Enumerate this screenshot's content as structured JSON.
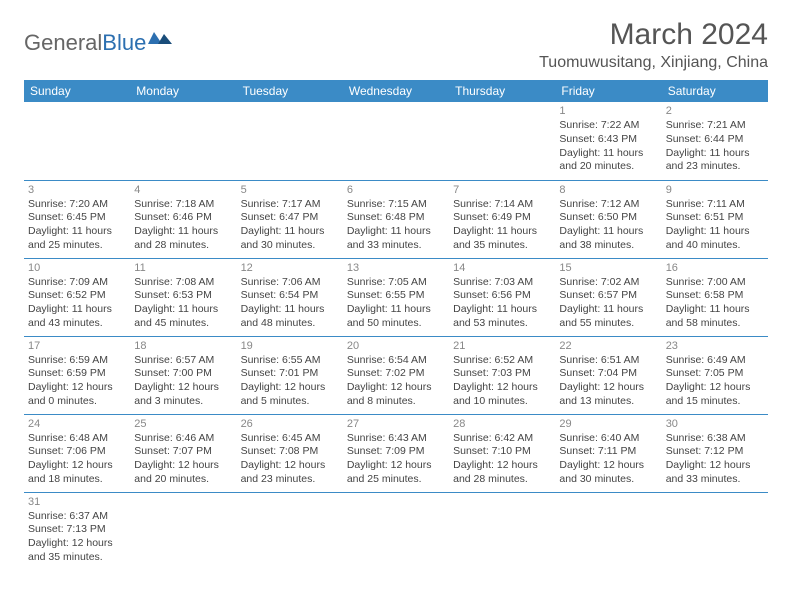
{
  "logo": {
    "text1": "General",
    "text2": "Blue"
  },
  "title": "March 2024",
  "location": "Tuomuwusitang, Xinjiang, China",
  "colors": {
    "header_bg": "#3b8bc6",
    "header_text": "#ffffff",
    "border": "#3b8bc6",
    "daynum": "#888888",
    "body_text": "#444444",
    "logo_grey": "#666666",
    "logo_blue": "#2c6fb0"
  },
  "weekdays": [
    "Sunday",
    "Monday",
    "Tuesday",
    "Wednesday",
    "Thursday",
    "Friday",
    "Saturday"
  ],
  "weeks": [
    [
      null,
      null,
      null,
      null,
      null,
      {
        "n": "1",
        "sr": "Sunrise: 7:22 AM",
        "ss": "Sunset: 6:43 PM",
        "d1": "Daylight: 11 hours",
        "d2": "and 20 minutes."
      },
      {
        "n": "2",
        "sr": "Sunrise: 7:21 AM",
        "ss": "Sunset: 6:44 PM",
        "d1": "Daylight: 11 hours",
        "d2": "and 23 minutes."
      }
    ],
    [
      {
        "n": "3",
        "sr": "Sunrise: 7:20 AM",
        "ss": "Sunset: 6:45 PM",
        "d1": "Daylight: 11 hours",
        "d2": "and 25 minutes."
      },
      {
        "n": "4",
        "sr": "Sunrise: 7:18 AM",
        "ss": "Sunset: 6:46 PM",
        "d1": "Daylight: 11 hours",
        "d2": "and 28 minutes."
      },
      {
        "n": "5",
        "sr": "Sunrise: 7:17 AM",
        "ss": "Sunset: 6:47 PM",
        "d1": "Daylight: 11 hours",
        "d2": "and 30 minutes."
      },
      {
        "n": "6",
        "sr": "Sunrise: 7:15 AM",
        "ss": "Sunset: 6:48 PM",
        "d1": "Daylight: 11 hours",
        "d2": "and 33 minutes."
      },
      {
        "n": "7",
        "sr": "Sunrise: 7:14 AM",
        "ss": "Sunset: 6:49 PM",
        "d1": "Daylight: 11 hours",
        "d2": "and 35 minutes."
      },
      {
        "n": "8",
        "sr": "Sunrise: 7:12 AM",
        "ss": "Sunset: 6:50 PM",
        "d1": "Daylight: 11 hours",
        "d2": "and 38 minutes."
      },
      {
        "n": "9",
        "sr": "Sunrise: 7:11 AM",
        "ss": "Sunset: 6:51 PM",
        "d1": "Daylight: 11 hours",
        "d2": "and 40 minutes."
      }
    ],
    [
      {
        "n": "10",
        "sr": "Sunrise: 7:09 AM",
        "ss": "Sunset: 6:52 PM",
        "d1": "Daylight: 11 hours",
        "d2": "and 43 minutes."
      },
      {
        "n": "11",
        "sr": "Sunrise: 7:08 AM",
        "ss": "Sunset: 6:53 PM",
        "d1": "Daylight: 11 hours",
        "d2": "and 45 minutes."
      },
      {
        "n": "12",
        "sr": "Sunrise: 7:06 AM",
        "ss": "Sunset: 6:54 PM",
        "d1": "Daylight: 11 hours",
        "d2": "and 48 minutes."
      },
      {
        "n": "13",
        "sr": "Sunrise: 7:05 AM",
        "ss": "Sunset: 6:55 PM",
        "d1": "Daylight: 11 hours",
        "d2": "and 50 minutes."
      },
      {
        "n": "14",
        "sr": "Sunrise: 7:03 AM",
        "ss": "Sunset: 6:56 PM",
        "d1": "Daylight: 11 hours",
        "d2": "and 53 minutes."
      },
      {
        "n": "15",
        "sr": "Sunrise: 7:02 AM",
        "ss": "Sunset: 6:57 PM",
        "d1": "Daylight: 11 hours",
        "d2": "and 55 minutes."
      },
      {
        "n": "16",
        "sr": "Sunrise: 7:00 AM",
        "ss": "Sunset: 6:58 PM",
        "d1": "Daylight: 11 hours",
        "d2": "and 58 minutes."
      }
    ],
    [
      {
        "n": "17",
        "sr": "Sunrise: 6:59 AM",
        "ss": "Sunset: 6:59 PM",
        "d1": "Daylight: 12 hours",
        "d2": "and 0 minutes."
      },
      {
        "n": "18",
        "sr": "Sunrise: 6:57 AM",
        "ss": "Sunset: 7:00 PM",
        "d1": "Daylight: 12 hours",
        "d2": "and 3 minutes."
      },
      {
        "n": "19",
        "sr": "Sunrise: 6:55 AM",
        "ss": "Sunset: 7:01 PM",
        "d1": "Daylight: 12 hours",
        "d2": "and 5 minutes."
      },
      {
        "n": "20",
        "sr": "Sunrise: 6:54 AM",
        "ss": "Sunset: 7:02 PM",
        "d1": "Daylight: 12 hours",
        "d2": "and 8 minutes."
      },
      {
        "n": "21",
        "sr": "Sunrise: 6:52 AM",
        "ss": "Sunset: 7:03 PM",
        "d1": "Daylight: 12 hours",
        "d2": "and 10 minutes."
      },
      {
        "n": "22",
        "sr": "Sunrise: 6:51 AM",
        "ss": "Sunset: 7:04 PM",
        "d1": "Daylight: 12 hours",
        "d2": "and 13 minutes."
      },
      {
        "n": "23",
        "sr": "Sunrise: 6:49 AM",
        "ss": "Sunset: 7:05 PM",
        "d1": "Daylight: 12 hours",
        "d2": "and 15 minutes."
      }
    ],
    [
      {
        "n": "24",
        "sr": "Sunrise: 6:48 AM",
        "ss": "Sunset: 7:06 PM",
        "d1": "Daylight: 12 hours",
        "d2": "and 18 minutes."
      },
      {
        "n": "25",
        "sr": "Sunrise: 6:46 AM",
        "ss": "Sunset: 7:07 PM",
        "d1": "Daylight: 12 hours",
        "d2": "and 20 minutes."
      },
      {
        "n": "26",
        "sr": "Sunrise: 6:45 AM",
        "ss": "Sunset: 7:08 PM",
        "d1": "Daylight: 12 hours",
        "d2": "and 23 minutes."
      },
      {
        "n": "27",
        "sr": "Sunrise: 6:43 AM",
        "ss": "Sunset: 7:09 PM",
        "d1": "Daylight: 12 hours",
        "d2": "and 25 minutes."
      },
      {
        "n": "28",
        "sr": "Sunrise: 6:42 AM",
        "ss": "Sunset: 7:10 PM",
        "d1": "Daylight: 12 hours",
        "d2": "and 28 minutes."
      },
      {
        "n": "29",
        "sr": "Sunrise: 6:40 AM",
        "ss": "Sunset: 7:11 PM",
        "d1": "Daylight: 12 hours",
        "d2": "and 30 minutes."
      },
      {
        "n": "30",
        "sr": "Sunrise: 6:38 AM",
        "ss": "Sunset: 7:12 PM",
        "d1": "Daylight: 12 hours",
        "d2": "and 33 minutes."
      }
    ],
    [
      {
        "n": "31",
        "sr": "Sunrise: 6:37 AM",
        "ss": "Sunset: 7:13 PM",
        "d1": "Daylight: 12 hours",
        "d2": "and 35 minutes."
      },
      null,
      null,
      null,
      null,
      null,
      null
    ]
  ]
}
